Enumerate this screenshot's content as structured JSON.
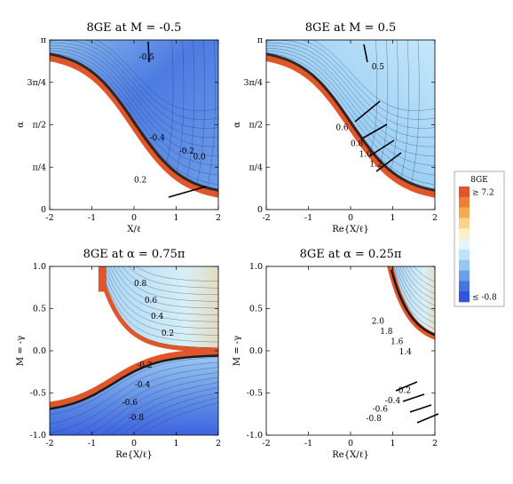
{
  "colors": {
    "band": "#E0562B",
    "black_edge": "#1a1a1a",
    "blue_dark": "#3F64E0",
    "blue_light": "#C9E8FA",
    "legend_scale": [
      "#E0562B",
      "#EA7F3C",
      "#F3A957",
      "#F8D489",
      "#FBF1C4",
      "#E4F6FC",
      "#BFE4F8",
      "#94C8F2",
      "#6C9FEA",
      "#4874E0",
      "#3153E2"
    ]
  },
  "legend": {
    "title": "8GE",
    "high_label": "≥ 7.2",
    "low_label": "≤ -0.8"
  },
  "chart_data": [
    {
      "type": "heatmap",
      "title": "8GE at M = -0.5",
      "xlabel": "X/ℓ",
      "ylabel": "α",
      "xlim": [
        -2,
        2
      ],
      "ylim": [
        0,
        3.1416
      ],
      "xticks": [
        -2,
        -1,
        0,
        1,
        2
      ],
      "xtick_labels": [
        "-2",
        "-1",
        "0",
        "1",
        "2"
      ],
      "yticks": [
        0,
        0.7854,
        1.5708,
        2.3562,
        3.1416
      ],
      "ytick_labels": [
        "0",
        "π/4",
        "π/2",
        "3π/4",
        "π"
      ],
      "contour_labels": [
        {
          "text": "-0.5",
          "x": 0.3,
          "y": 2.78
        },
        {
          "text": "-0.4",
          "x": 0.55,
          "y": 1.28
        },
        {
          "text": "-0.2",
          "x": 1.25,
          "y": 1.04
        },
        {
          "text": "0.0",
          "x": 1.55,
          "y": 0.93
        },
        {
          "text": "0.2",
          "x": 0.15,
          "y": 0.5
        }
      ]
    },
    {
      "type": "heatmap",
      "title": "8GE at M = 0.5",
      "xlabel": "Re{X/ℓ}",
      "ylabel": "α",
      "xlim": [
        -2,
        2
      ],
      "ylim": [
        0,
        3.1416
      ],
      "xticks": [
        -2,
        -1,
        0,
        1,
        2
      ],
      "xtick_labels": [
        "-2",
        "-1",
        "0",
        "1",
        "2"
      ],
      "yticks": [
        0,
        0.7854,
        1.5708,
        2.3562,
        3.1416
      ],
      "ytick_labels": [
        "0",
        "π/4",
        "π/2",
        "3π/4",
        "π"
      ],
      "contour_labels": [
        {
          "text": "0.5",
          "x": 0.65,
          "y": 2.6
        },
        {
          "text": "0.6",
          "x": -0.2,
          "y": 1.47
        },
        {
          "text": "0.8",
          "x": 0.15,
          "y": 1.18
        },
        {
          "text": "1.0",
          "x": 0.35,
          "y": 0.98
        },
        {
          "text": "1.2",
          "x": 0.6,
          "y": 0.8
        }
      ]
    },
    {
      "type": "heatmap",
      "title": "8GE at α = 0.75π",
      "xlabel": "Re{X/ℓ}",
      "ylabel": "M = -γ",
      "xlim": [
        -2,
        2
      ],
      "ylim": [
        -1,
        1
      ],
      "xticks": [
        -2,
        -1,
        0,
        1,
        2
      ],
      "xtick_labels": [
        "-2",
        "-1",
        "0",
        "1",
        "2"
      ],
      "yticks": [
        -1,
        -0.5,
        0,
        0.5,
        1
      ],
      "ytick_labels": [
        "-1.0",
        "-0.5",
        "0.0",
        "0.5",
        "1.0"
      ],
      "contour_labels": [
        {
          "text": "0.8",
          "x": 0.15,
          "y": 0.77
        },
        {
          "text": "0.6",
          "x": 0.4,
          "y": 0.57
        },
        {
          "text": "0.4",
          "x": 0.55,
          "y": 0.38
        },
        {
          "text": "0.2",
          "x": 0.8,
          "y": 0.18
        },
        {
          "text": "-0.2",
          "x": 0.25,
          "y": -0.2
        },
        {
          "text": "-0.4",
          "x": 0.2,
          "y": -0.43
        },
        {
          "text": "-0.6",
          "x": -0.1,
          "y": -0.64
        },
        {
          "text": "-0.8",
          "x": 0.05,
          "y": -0.82
        }
      ]
    },
    {
      "type": "heatmap",
      "title": "8GE at α = 0.25π",
      "xlabel": "Re{X/ℓ}",
      "ylabel": "M = -γ",
      "xlim": [
        -2,
        2
      ],
      "ylim": [
        -1,
        1
      ],
      "xticks": [
        -2,
        -1,
        0,
        1,
        2
      ],
      "xtick_labels": [
        "-2",
        "-1",
        "0",
        "1",
        "2"
      ],
      "yticks": [
        -1,
        -0.5,
        0,
        0.5,
        1
      ],
      "ytick_labels": [
        "-1.0",
        "-0.5",
        "0.0",
        "0.5",
        "1.0"
      ],
      "contour_labels": [
        {
          "text": "2.0",
          "x": 0.65,
          "y": 0.32
        },
        {
          "text": "1.8",
          "x": 0.85,
          "y": 0.2
        },
        {
          "text": "1.6",
          "x": 1.1,
          "y": 0.08
        },
        {
          "text": "1.4",
          "x": 1.3,
          "y": -0.04
        },
        {
          "text": "-0.2",
          "x": 1.25,
          "y": -0.5
        },
        {
          "text": "-0.4",
          "x": 1.0,
          "y": -0.62
        },
        {
          "text": "-0.6",
          "x": 0.7,
          "y": -0.72
        },
        {
          "text": "-0.8",
          "x": 0.55,
          "y": -0.83
        }
      ]
    }
  ]
}
